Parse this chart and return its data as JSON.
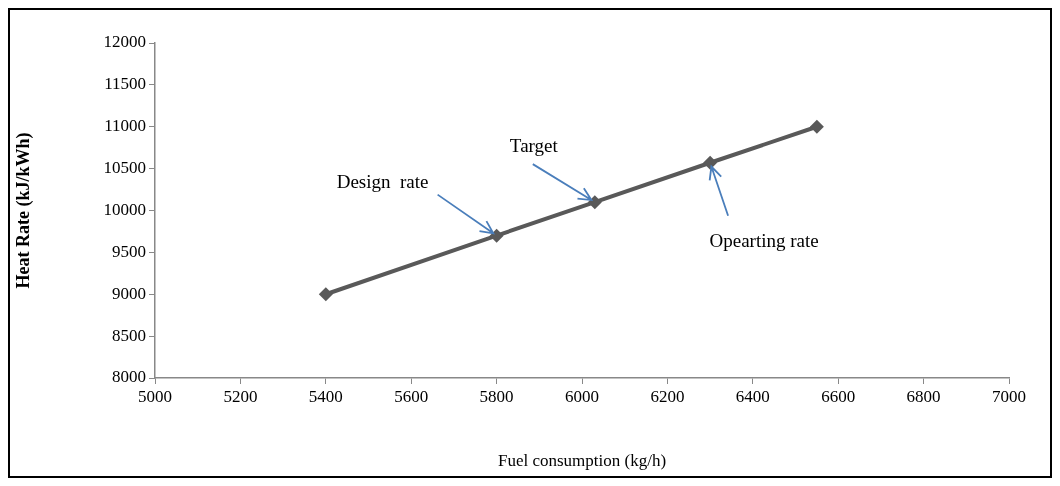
{
  "chart_data": {
    "type": "line",
    "xlabel": "Fuel consumption (kg/h)",
    "ylabel": "Heat Rate (kJ/kWh)",
    "x": [
      5400,
      5800,
      6030,
      6300,
      6550
    ],
    "series": [
      {
        "color": "#595959",
        "values": [
          9000,
          9700,
          10100,
          10570,
          11000
        ]
      }
    ],
    "xlim": [
      5000,
      7000
    ],
    "xticks": [
      5000,
      5200,
      5400,
      5600,
      5800,
      6000,
      6200,
      6400,
      6600,
      6800,
      7000
    ],
    "ylim": [
      8000,
      12000
    ],
    "yticks": [
      8000,
      8500,
      9000,
      9500,
      10000,
      10500,
      11000,
      11500,
      12000
    ],
    "grid": false,
    "legend": false,
    "marker": "diamond",
    "line_style": "solid",
    "annotations": [
      {
        "text": "Design  rate",
        "x": 5800,
        "y": 9700
      },
      {
        "text": "Target",
        "x": 6030,
        "y": 10100
      },
      {
        "text": "Opearting rate",
        "x": 6300,
        "y": 10570
      }
    ]
  }
}
